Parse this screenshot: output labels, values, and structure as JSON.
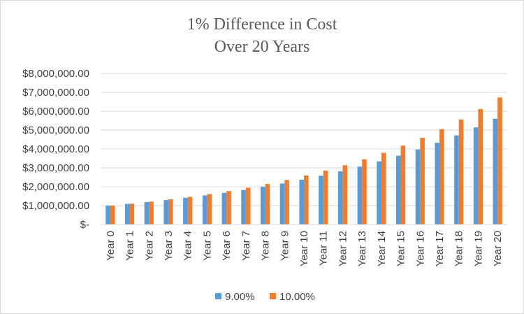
{
  "chart_data": {
    "type": "bar",
    "title": [
      "1% Difference in Cost",
      "Over 20 Years"
    ],
    "xlabel": "",
    "ylabel": "",
    "ylim": [
      0,
      8000000
    ],
    "y_ticks": [
      0,
      1000000,
      2000000,
      3000000,
      4000000,
      5000000,
      6000000,
      7000000,
      8000000
    ],
    "y_tick_labels": [
      "$-",
      "$1,000,000.00",
      "$2,000,000.00",
      "$3,000,000.00",
      "$4,000,000.00",
      "$5,000,000.00",
      "$6,000,000.00",
      "$7,000,000.00",
      "$8,000,000.00"
    ],
    "grid": true,
    "legend_position": "bottom",
    "categories": [
      "Year 0",
      "Year 1",
      "Year 2",
      "Year 3",
      "Year 4",
      "Year 5",
      "Year 6",
      "Year 7",
      "Year 8",
      "Year 9",
      "Year 10",
      "Year 11",
      "Year 12",
      "Year 13",
      "Year 14",
      "Year 15",
      "Year 16",
      "Year 17",
      "Year 18",
      "Year 19",
      "Year 20"
    ],
    "series": [
      {
        "name": "9.00%",
        "color": "#5b9bd5",
        "values": [
          1000000,
          1090000,
          1188100,
          1295029,
          1411582,
          1538624,
          1677100,
          1828039,
          1992563,
          2171893,
          2367364,
          2580426,
          2812665,
          3065805,
          3341727,
          3642482,
          3970306,
          4327633,
          4717120,
          5141661,
          5604411
        ]
      },
      {
        "name": "10.00%",
        "color": "#ed7d31",
        "values": [
          1000000,
          1100000,
          1210000,
          1331000,
          1464100,
          1610510,
          1771561,
          1948717,
          2143589,
          2357948,
          2593742,
          2853117,
          3138428,
          3452271,
          3797498,
          4177248,
          4594973,
          5054470,
          5559917,
          6115909,
          6727500
        ]
      }
    ]
  }
}
